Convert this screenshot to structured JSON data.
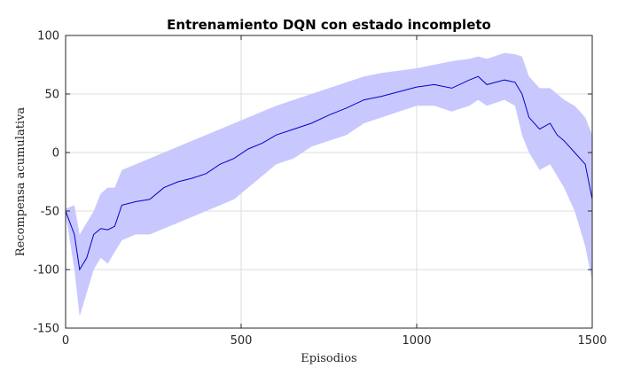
{
  "chart_data": {
    "type": "line",
    "title": "Entrenamiento DQN con estado incompleto",
    "xlabel": "Episodios",
    "ylabel": "Recompensa acumulativa",
    "xlim": [
      0,
      1500
    ],
    "ylim": [
      -150,
      100
    ],
    "xticks": [
      0,
      500,
      1000,
      1500
    ],
    "yticks": [
      100,
      50,
      0,
      -50,
      -100,
      -150
    ],
    "grid": true,
    "colors": {
      "mean_line": "#0000cc",
      "band": "#c8c8ff",
      "axis": "#262626",
      "grid": "#dcdcdc"
    },
    "series": [
      {
        "role": "mean",
        "x": [
          0,
          25,
          40,
          60,
          80,
          100,
          120,
          140,
          160,
          200,
          240,
          280,
          320,
          360,
          400,
          440,
          480,
          520,
          560,
          600,
          650,
          700,
          750,
          800,
          850,
          900,
          950,
          1000,
          1050,
          1100,
          1150,
          1175,
          1200,
          1250,
          1280,
          1300,
          1320,
          1350,
          1380,
          1400,
          1420,
          1450,
          1480,
          1500
        ],
        "values": [
          -50,
          -70,
          -100,
          -90,
          -70,
          -65,
          -66,
          -63,
          -45,
          -42,
          -40,
          -30,
          -25,
          -22,
          -18,
          -10,
          -5,
          3,
          8,
          15,
          20,
          25,
          32,
          38,
          45,
          48,
          52,
          56,
          58,
          55,
          62,
          65,
          58,
          62,
          60,
          50,
          30,
          20,
          25,
          15,
          10,
          0,
          -10,
          -40
        ]
      },
      {
        "role": "band-upper",
        "x": [
          0,
          25,
          40,
          60,
          80,
          100,
          120,
          140,
          160,
          200,
          240,
          280,
          320,
          360,
          400,
          440,
          480,
          520,
          560,
          600,
          650,
          700,
          750,
          800,
          850,
          900,
          950,
          1000,
          1050,
          1100,
          1150,
          1175,
          1200,
          1250,
          1280,
          1300,
          1320,
          1350,
          1380,
          1400,
          1420,
          1450,
          1480,
          1500
        ],
        "values": [
          -48,
          -45,
          -70,
          -60,
          -50,
          -35,
          -30,
          -30,
          -15,
          -10,
          -5,
          0,
          5,
          10,
          15,
          20,
          25,
          30,
          35,
          40,
          45,
          50,
          55,
          60,
          65,
          68,
          70,
          72,
          75,
          78,
          80,
          82,
          80,
          85,
          84,
          82,
          65,
          55,
          55,
          50,
          45,
          40,
          30,
          15
        ]
      },
      {
        "role": "band-lower",
        "x": [
          0,
          25,
          40,
          60,
          80,
          100,
          120,
          140,
          160,
          200,
          240,
          280,
          320,
          360,
          400,
          440,
          480,
          520,
          560,
          600,
          650,
          700,
          750,
          800,
          850,
          900,
          950,
          1000,
          1050,
          1100,
          1150,
          1175,
          1200,
          1250,
          1280,
          1300,
          1320,
          1350,
          1380,
          1400,
          1420,
          1450,
          1480,
          1500
        ],
        "values": [
          -52,
          -100,
          -140,
          -120,
          -100,
          -90,
          -95,
          -85,
          -75,
          -70,
          -70,
          -65,
          -60,
          -55,
          -50,
          -45,
          -40,
          -30,
          -20,
          -10,
          -5,
          5,
          10,
          15,
          25,
          30,
          35,
          40,
          40,
          35,
          40,
          45,
          40,
          45,
          40,
          15,
          0,
          -15,
          -10,
          -20,
          -30,
          -50,
          -80,
          -110
        ]
      }
    ]
  }
}
